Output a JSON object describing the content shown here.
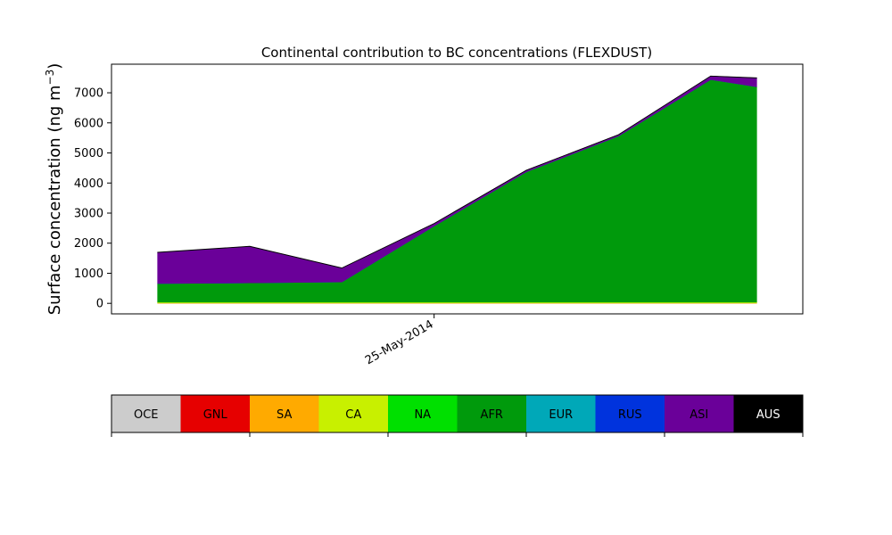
{
  "chart_data": {
    "type": "area",
    "stacked": true,
    "title": "Continental contribution to BC concentrations (FLEXDUST)",
    "ylabel": "Surface concentration",
    "ylabel_unit_base": "(ng m",
    "ylabel_unit_exp": "−3",
    "ylabel_unit_close": ")",
    "xlabel": "",
    "ylim": [
      -350,
      7950
    ],
    "xlim": [
      "2014-05-21 12:00",
      "2014-05-29 00:00"
    ],
    "yticks": [
      0,
      1000,
      2000,
      3000,
      4000,
      5000,
      6000,
      7000
    ],
    "xtick_labels": [
      {
        "x": "2014-05-25 00:00",
        "label": "25-May-2014"
      }
    ],
    "x": [
      "2014-05-22 00:00",
      "2014-05-23 00:00",
      "2014-05-24 00:00",
      "2014-05-25 00:00",
      "2014-05-26 00:00",
      "2014-05-27 00:00",
      "2014-05-28 00:00",
      "2014-05-28 12:00"
    ],
    "series": [
      {
        "name": "OCE",
        "color": "#cccccc",
        "values": [
          5,
          5,
          5,
          5,
          5,
          5,
          5,
          5
        ]
      },
      {
        "name": "GNL",
        "color": "#e60000",
        "values": [
          0,
          0,
          0,
          0,
          0,
          0,
          0,
          0
        ]
      },
      {
        "name": "SA",
        "color": "#ffaa00",
        "values": [
          5,
          5,
          5,
          5,
          5,
          5,
          5,
          5
        ]
      },
      {
        "name": "CA",
        "color": "#c8f000",
        "values": [
          30,
          30,
          30,
          30,
          30,
          30,
          30,
          30
        ]
      },
      {
        "name": "NA",
        "color": "#00e000",
        "values": [
          0,
          0,
          0,
          0,
          0,
          0,
          0,
          0
        ]
      },
      {
        "name": "AFR",
        "color": "#009a0c",
        "values": [
          620,
          640,
          670,
          2530,
          4330,
          5520,
          7400,
          7160
        ]
      },
      {
        "name": "EUR",
        "color": "#00a8b8",
        "values": [
          0,
          0,
          0,
          0,
          0,
          0,
          0,
          0
        ]
      },
      {
        "name": "RUS",
        "color": "#0033dd",
        "values": [
          0,
          0,
          0,
          0,
          0,
          0,
          0,
          0
        ]
      },
      {
        "name": "ASI",
        "color": "#6a0099",
        "values": [
          1030,
          1210,
          460,
          80,
          50,
          40,
          110,
          290
        ]
      },
      {
        "name": "AUS",
        "color": "#000000",
        "values": [
          10,
          10,
          10,
          10,
          10,
          10,
          10,
          10
        ]
      }
    ],
    "legend_placement": "bottom"
  }
}
